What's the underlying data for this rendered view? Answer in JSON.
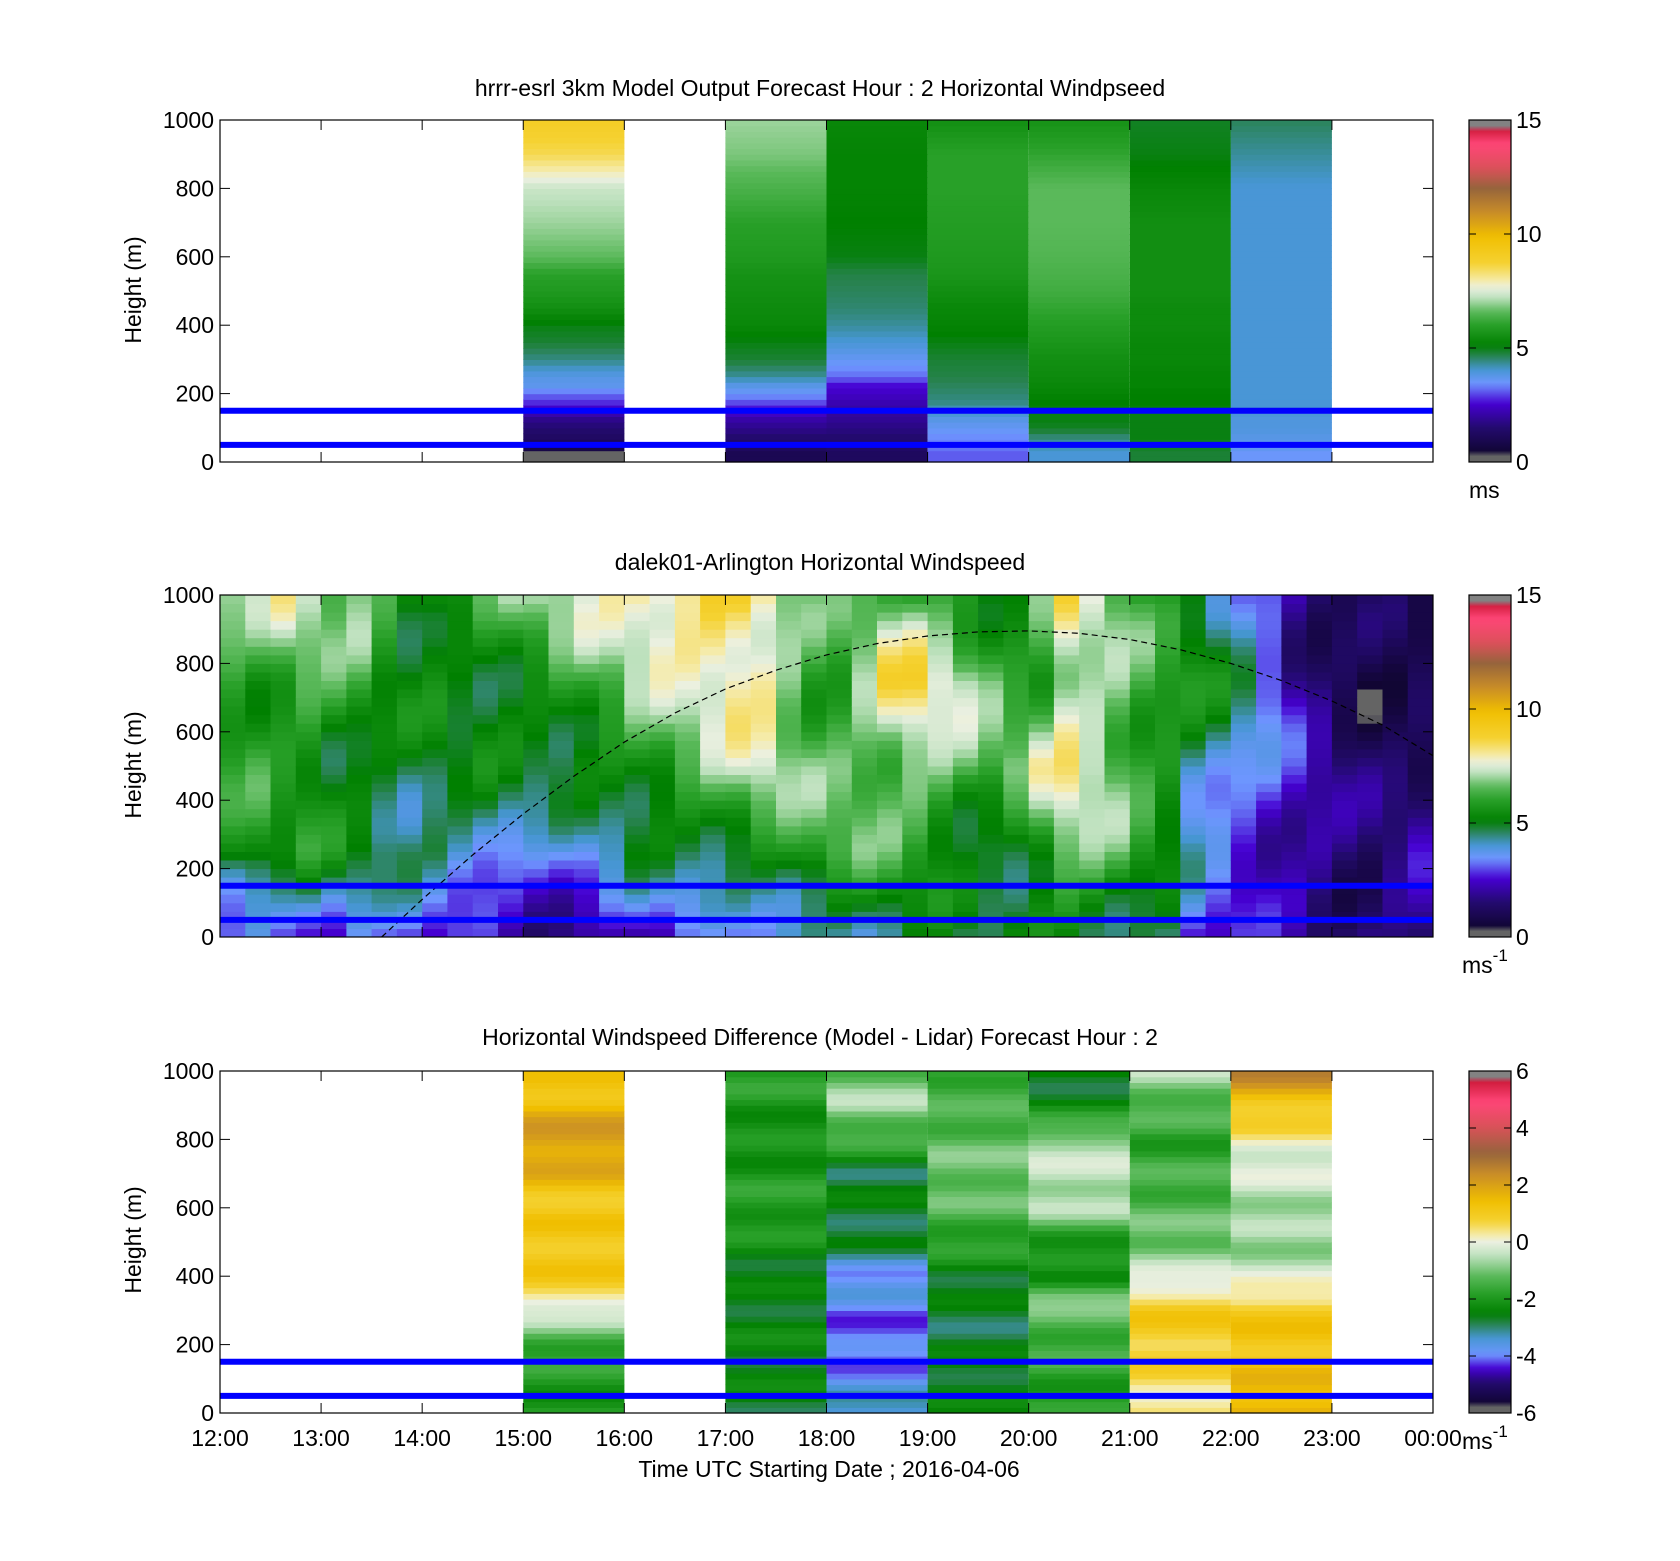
{
  "figure": {
    "xlabel": "Time UTC  Starting Date ; 2016-04-06",
    "x_ticks": [
      "12:00",
      "13:00",
      "14:00",
      "15:00",
      "16:00",
      "17:00",
      "18:00",
      "19:00",
      "20:00",
      "21:00",
      "22:00",
      "23:00",
      "00:00"
    ]
  },
  "chart_data": [
    {
      "id": "model",
      "type": "heatmap",
      "title": "hrrr-esrl 3km Model Output   Forecast Hour : 2 Horizontal Windpseed",
      "ylabel": "Height (m)",
      "xlim_hours": [
        12,
        24
      ],
      "ylim": [
        0,
        1000
      ],
      "y_ticks": [
        "0",
        "200",
        "400",
        "600",
        "800",
        "1000"
      ],
      "colorbar": {
        "ticks": [
          "0",
          "5",
          "10",
          "15"
        ],
        "range": [
          0,
          15
        ],
        "units": "ms",
        "units_sup": ""
      },
      "reference_lines_m": [
        50,
        150
      ],
      "reference_line_color": "#0000ff",
      "levels_m": [
        25,
        50,
        75,
        100,
        125,
        150,
        175,
        200,
        225,
        250,
        300,
        350,
        400,
        450,
        500,
        550,
        600,
        700,
        800,
        900,
        1000
      ],
      "columns": [
        {
          "start_hour": 15,
          "values": [
            0.3,
            1.0,
            1.3,
            1.5,
            1.8,
            2.3,
            2.8,
            3.2,
            3.7,
            3.8,
            4.4,
            4.8,
            5.0,
            5.5,
            5.8,
            6.0,
            6.6,
            7.0,
            7.3,
            8.5,
            9.0
          ]
        },
        {
          "start_hour": 17,
          "values": [
            1.0,
            1.3,
            1.5,
            1.8,
            2.1,
            2.5,
            3.0,
            3.5,
            3.8,
            4.3,
            4.8,
            5.0,
            5.3,
            5.4,
            5.5,
            5.6,
            5.8,
            6.0,
            6.4,
            6.8,
            7.0
          ]
        },
        {
          "start_hour": 18,
          "values": [
            1.2,
            1.4,
            1.5,
            1.7,
            1.9,
            2.0,
            2.2,
            2.4,
            2.6,
            3.2,
            3.6,
            4.0,
            4.3,
            4.5,
            4.6,
            4.7,
            5.0,
            5.1,
            5.2,
            5.2,
            5.3
          ]
        },
        {
          "start_hour": 19,
          "values": [
            3.1,
            3.3,
            3.4,
            3.6,
            3.8,
            4.1,
            4.4,
            4.5,
            4.6,
            4.7,
            4.8,
            5.0,
            5.2,
            5.3,
            5.5,
            5.7,
            5.8,
            5.9,
            6.0,
            6.0,
            5.5
          ]
        },
        {
          "start_hour": 20,
          "values": [
            4.0,
            4.2,
            4.5,
            4.9,
            5.0,
            5.0,
            5.1,
            5.2,
            5.3,
            5.4,
            5.5,
            5.7,
            5.9,
            6.1,
            6.3,
            6.4,
            6.5,
            6.6,
            6.6,
            6.1,
            5.6
          ]
        },
        {
          "start_hour": 21,
          "values": [
            4.8,
            4.9,
            5.0,
            5.0,
            5.0,
            5.0,
            5.1,
            5.1,
            5.2,
            5.2,
            5.3,
            5.3,
            5.4,
            5.4,
            5.5,
            5.5,
            5.5,
            5.5,
            5.3,
            5.0,
            4.9
          ]
        },
        {
          "start_hour": 22,
          "values": [
            3.5,
            3.7,
            3.8,
            3.9,
            3.9,
            4.0,
            4.0,
            4.0,
            4.0,
            4.0,
            4.0,
            4.0,
            4.0,
            4.0,
            4.0,
            4.0,
            4.0,
            4.0,
            4.0,
            4.3,
            4.6
          ]
        }
      ]
    },
    {
      "id": "lidar",
      "type": "heatmap",
      "title": "dalek01-Arlington  Horizontal Windspeed",
      "ylabel": "Height (m)",
      "xlim_hours": [
        12,
        24
      ],
      "ylim": [
        0,
        1000
      ],
      "y_ticks": [
        "0",
        "200",
        "400",
        "600",
        "800",
        "1000"
      ],
      "colorbar": {
        "ticks": [
          "0",
          "5",
          "10",
          "15"
        ],
        "range": [
          0,
          15
        ],
        "units": "ms",
        "units_sup": "-1"
      },
      "reference_lines_m": [
        50,
        150
      ],
      "reference_line_color": "#0000ff",
      "dashed_curve": {
        "x_hours": [
          13.6,
          14.0,
          14.5,
          15.0,
          15.5,
          16.0,
          16.5,
          17.0,
          17.5,
          18.0,
          18.5,
          19.0,
          19.5,
          20.0,
          20.5,
          21.0,
          21.5,
          22.0,
          22.5,
          23.0,
          23.5,
          24.0
        ],
        "y_m": [
          0,
          110,
          240,
          360,
          470,
          570,
          655,
          725,
          780,
          825,
          858,
          880,
          892,
          895,
          888,
          870,
          840,
          800,
          750,
          690,
          620,
          530
        ]
      },
      "time_bins_hours": [
        12.0,
        12.25,
        12.5,
        12.75,
        13.0,
        13.25,
        13.5,
        13.75,
        14.0,
        14.25,
        14.5,
        14.75,
        15.0,
        15.25,
        15.5,
        15.75,
        16.0,
        16.25,
        16.5,
        16.75,
        17.0,
        17.25,
        17.5,
        17.75,
        18.0,
        18.25,
        18.5,
        18.75,
        19.0,
        19.25,
        19.5,
        19.75,
        20.0,
        20.25,
        20.5,
        20.75,
        21.0,
        21.25,
        21.5,
        21.75,
        22.0,
        22.25,
        22.5,
        22.75,
        23.0,
        23.25,
        23.5,
        23.75
      ],
      "levels_m": [
        0,
        250,
        500,
        750,
        1000
      ],
      "profile_values": [
        [
          3.0,
          5.5,
          5.8,
          6.2,
          7.0
        ],
        [
          3.5,
          5.7,
          5.9,
          6.0,
          6.8
        ],
        [
          3.2,
          5.3,
          5.6,
          6.2,
          7.5
        ],
        [
          3.4,
          5.5,
          5.8,
          6.4,
          7.2
        ],
        [
          3.0,
          5.2,
          5.4,
          6.0,
          6.9
        ],
        [
          3.3,
          5.0,
          5.3,
          5.8,
          7.3
        ],
        [
          2.6,
          4.8,
          5.0,
          5.2,
          6.5
        ],
        [
          2.8,
          4.6,
          4.9,
          5.0,
          5.5
        ],
        [
          2.4,
          4.7,
          5.0,
          5.1,
          6.0
        ],
        [
          2.3,
          4.5,
          4.8,
          5.0,
          5.8
        ],
        [
          2.2,
          4.2,
          4.9,
          5.3,
          6.2
        ],
        [
          2.0,
          3.8,
          4.8,
          5.5,
          6.4
        ],
        [
          2.0,
          3.3,
          4.9,
          5.6,
          6.8
        ],
        [
          2.2,
          3.2,
          5.1,
          5.9,
          7.1
        ],
        [
          2.1,
          3.5,
          5.4,
          6.1,
          7.4
        ],
        [
          2.2,
          4.0,
          5.6,
          6.4,
          7.7
        ],
        [
          2.5,
          4.5,
          5.9,
          6.8,
          8.2
        ],
        [
          2.4,
          4.8,
          6.1,
          7.0,
          8.6
        ],
        [
          2.6,
          5.0,
          6.5,
          7.3,
          8.8
        ],
        [
          2.5,
          5.2,
          6.7,
          7.8,
          9.0
        ],
        [
          2.9,
          5.4,
          7.0,
          8.3,
          8.7
        ],
        [
          3.5,
          5.6,
          7.4,
          8.1,
          8.0
        ],
        [
          4.0,
          5.8,
          6.8,
          7.0,
          6.8
        ],
        [
          4.2,
          6.1,
          6.5,
          6.3,
          6.2
        ],
        [
          4.5,
          6.3,
          6.6,
          6.2,
          6.0
        ],
        [
          4.6,
          6.2,
          6.8,
          7.0,
          6.3
        ],
        [
          4.8,
          6.0,
          6.9,
          8.2,
          6.6
        ],
        [
          4.9,
          5.8,
          7.2,
          8.5,
          6.4
        ],
        [
          4.7,
          5.5,
          6.9,
          7.6,
          6.2
        ],
        [
          4.5,
          5.0,
          6.6,
          7.0,
          5.9
        ],
        [
          4.6,
          4.8,
          6.4,
          6.4,
          5.6
        ],
        [
          4.8,
          5.2,
          6.6,
          6.0,
          5.5
        ],
        [
          5.0,
          6.0,
          7.3,
          6.2,
          6.5
        ],
        [
          5.2,
          7.0,
          7.8,
          7.6,
          8.0
        ],
        [
          5.3,
          6.6,
          7.4,
          7.2,
          7.3
        ],
        [
          5.0,
          6.2,
          6.8,
          6.8,
          6.5
        ],
        [
          4.8,
          5.6,
          6.2,
          6.3,
          5.9
        ],
        [
          4.5,
          5.1,
          5.8,
          5.9,
          5.6
        ],
        [
          3.0,
          3.8,
          4.6,
          5.5,
          5.2
        ],
        [
          2.6,
          3.2,
          4.2,
          5.0,
          4.7
        ],
        [
          2.3,
          2.8,
          3.6,
          4.5,
          3.8
        ],
        [
          2.0,
          2.6,
          3.0,
          3.5,
          3.0
        ],
        [
          1.8,
          2.4,
          2.5,
          2.3,
          1.8
        ],
        [
          1.6,
          2.1,
          2.0,
          1.6,
          1.3
        ],
        [
          1.5,
          1.6,
          1.5,
          1.2,
          1.0
        ],
        [
          1.6,
          1.4,
          1.3,
          1.0,
          0.8
        ],
        [
          1.9,
          1.6,
          1.3,
          1.0,
          0.7
        ],
        [
          2.3,
          1.9,
          1.4,
          1.0,
          0.6
        ]
      ]
    },
    {
      "id": "difference",
      "type": "heatmap",
      "title": "Horizontal Windspeed Difference (Model - Lidar) Forecast Hour : 2",
      "ylabel": "Height (m)",
      "xlim_hours": [
        12,
        24
      ],
      "ylim": [
        0,
        1000
      ],
      "y_ticks": [
        "0",
        "200",
        "400",
        "600",
        "800",
        "1000"
      ],
      "colorbar": {
        "ticks": [
          "-6",
          "-4",
          "-2",
          "0",
          "2",
          "4",
          "6"
        ],
        "range": [
          -6,
          6
        ],
        "units": "ms",
        "units_sup": "-1"
      },
      "reference_lines_m": [
        50,
        150
      ],
      "reference_line_color": "#0000ff",
      "levels_m": [
        0,
        100,
        200,
        300,
        350,
        400,
        500,
        600,
        700,
        800,
        900,
        1000
      ],
      "columns": [
        {
          "start_hour": 15,
          "values": [
            -2.0,
            -2.0,
            -1.5,
            -0.3,
            0.8,
            1.0,
            1.2,
            1.0,
            1.6,
            2.2,
            1.5,
            1.0
          ]
        },
        {
          "start_hour": 17,
          "values": [
            -2.6,
            -2.5,
            -2.4,
            -2.5,
            -2.6,
            -2.6,
            -2.2,
            -1.8,
            -2.0,
            -2.2,
            -2.0,
            -1.8
          ]
        },
        {
          "start_hour": 18,
          "values": [
            -3.2,
            -3.8,
            -4.2,
            -4.0,
            -3.8,
            -3.8,
            -2.8,
            -2.6,
            -2.8,
            -1.6,
            -0.6,
            -1.2
          ]
        },
        {
          "start_hour": 19,
          "values": [
            -2.6,
            -2.5,
            -2.7,
            -2.8,
            -2.6,
            -2.5,
            -1.8,
            -1.3,
            -1.0,
            -1.2,
            -1.5,
            -1.5
          ]
        },
        {
          "start_hour": 20,
          "values": [
            -2.0,
            -1.8,
            -1.5,
            -1.2,
            -0.8,
            -2.4,
            -2.0,
            -0.6,
            -0.4,
            -0.6,
            -2.5,
            -2.6
          ]
        },
        {
          "start_hour": 21,
          "values": [
            0.2,
            0.6,
            0.9,
            1.0,
            0.5,
            -0.3,
            -1.0,
            -1.3,
            -1.5,
            -1.8,
            -1.3,
            -0.6
          ]
        },
        {
          "start_hour": 22,
          "values": [
            1.8,
            1.4,
            1.2,
            1.1,
            0.4,
            -0.3,
            -0.8,
            -0.6,
            -0.3,
            0.2,
            1.2,
            2.5
          ]
        }
      ]
    }
  ]
}
